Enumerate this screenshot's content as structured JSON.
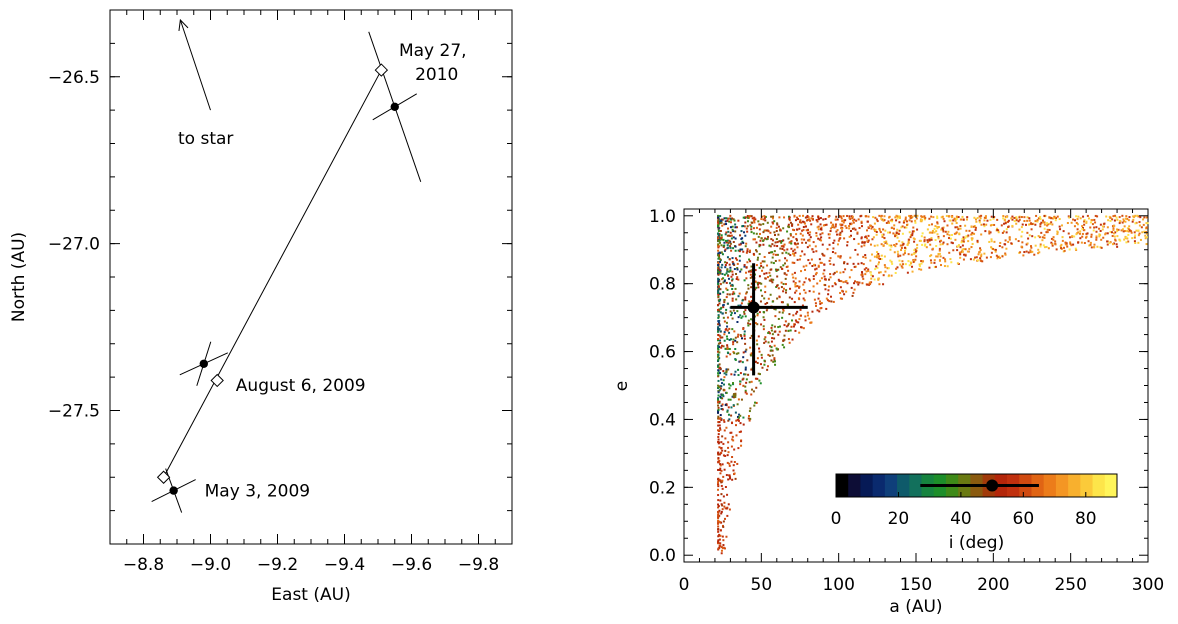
{
  "chart_data": [
    {
      "type": "scatter",
      "xlabel": "East (AU)",
      "ylabel": "North (AU)",
      "xlim": [
        -8.7,
        -9.9
      ],
      "ylim": [
        -27.9,
        -26.3
      ],
      "xticks": [
        -8.8,
        -9.0,
        -9.2,
        -9.4,
        -9.6,
        -9.8
      ],
      "xtick_labels": [
        "−8.8",
        "−9.0",
        "−9.2",
        "−9.4",
        "−9.6",
        "−9.8"
      ],
      "yticks": [
        -26.5,
        -27.0,
        -27.5
      ],
      "ytick_labels": [
        "−26.5",
        "−27.0",
        "−27.5"
      ],
      "observed": [
        {
          "x": -8.89,
          "y": -27.74,
          "label": "May 3, 2009"
        },
        {
          "x": -8.98,
          "y": -27.36,
          "label": "August 6, 2009"
        },
        {
          "x": -9.55,
          "y": -26.59,
          "label_lines": [
            "May 27,",
            "2010"
          ]
        }
      ],
      "model": [
        {
          "x": -8.86,
          "y": -27.7
        },
        {
          "x": -9.02,
          "y": -27.41
        },
        {
          "x": -9.51,
          "y": -26.48
        }
      ],
      "arrow": {
        "label": "to star",
        "from": {
          "x": -9.0,
          "y": -26.6
        },
        "to": {
          "x": -8.91,
          "y": -26.33
        }
      }
    },
    {
      "type": "scatter",
      "xlabel": "a (AU)",
      "ylabel": "e",
      "xlim": [
        0,
        300
      ],
      "ylim": [
        -0.02,
        1.02
      ],
      "xticks": [
        0,
        50,
        100,
        150,
        200,
        250,
        300
      ],
      "xtick_labels": [
        "0",
        "50",
        "100",
        "150",
        "200",
        "250",
        "300"
      ],
      "yticks": [
        0.0,
        0.2,
        0.4,
        0.6,
        0.8,
        1.0
      ],
      "ytick_labels": [
        "0.0",
        "0.2",
        "0.4",
        "0.6",
        "0.8",
        "1.0"
      ],
      "best_fit": {
        "a": 45,
        "e": 0.73,
        "a_range": [
          30,
          80
        ],
        "e_range": [
          0.53,
          0.86
        ]
      },
      "colorbar": {
        "label": "i (deg)",
        "range": [
          0,
          90
        ],
        "ticks": [
          0,
          20,
          40,
          60,
          80
        ],
        "tick_labels": [
          "0",
          "20",
          "40",
          "60",
          "80"
        ],
        "marker": 50,
        "marker_range": [
          27,
          65
        ],
        "colors": [
          "#000000",
          "#0d0d36",
          "#061a56",
          "#0a2a6e",
          "#0f3f7a",
          "#0e5a6a",
          "#12705c",
          "#16833f",
          "#1d8e2a",
          "#3e8a18",
          "#6a7a12",
          "#8a5a0f",
          "#a13a0a",
          "#b3260a",
          "#c0300e",
          "#d04a10",
          "#e06414",
          "#ec7c1a",
          "#f49624",
          "#f8b02e",
          "#fbca3a",
          "#fde54a",
          "#fff55a"
        ]
      }
    }
  ]
}
